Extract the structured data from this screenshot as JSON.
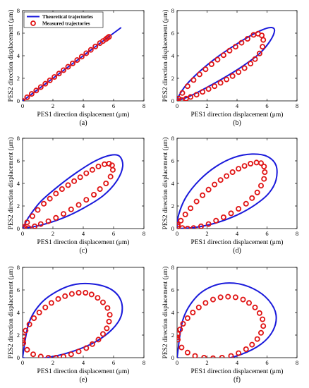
{
  "colors": {
    "theoretical": "#1a1adb",
    "measured": "#e01414"
  },
  "legend": {
    "position": "top-left",
    "panel": 0,
    "theoretical_label": "Theoretical trajectories",
    "measured_label": "Measured trajectories"
  },
  "chart_data": [
    {
      "type": "line",
      "panel_label": "(a)",
      "xlabel": "PES1 direction displacement (μm)",
      "ylabel": "PES2 direction displacement (μm)",
      "xlim": [
        0,
        8
      ],
      "ylim": [
        0,
        8
      ],
      "xticks": [
        0,
        2,
        4,
        6,
        8
      ],
      "yticks": [
        0,
        2,
        4,
        6,
        8
      ],
      "series": [
        {
          "name": "Theoretical trajectories",
          "style": "line",
          "x": [
            0,
            1,
            2,
            3,
            4,
            5,
            6,
            6.5
          ],
          "y": [
            0,
            1,
            2,
            3,
            4,
            5,
            6,
            6.5
          ]
        },
        {
          "name": "Measured trajectories",
          "style": "markers",
          "x": [
            0,
            0.3,
            0.6,
            0.9,
            1.2,
            1.5,
            1.8,
            2.1,
            2.4,
            2.7,
            3.0,
            3.3,
            3.6,
            3.9,
            4.2,
            4.5,
            4.8,
            5.1,
            5.3,
            5.5,
            5.6,
            5.7
          ],
          "y": [
            0,
            0.32,
            0.62,
            0.92,
            1.22,
            1.52,
            1.82,
            2.12,
            2.42,
            2.72,
            3.02,
            3.32,
            3.62,
            3.92,
            4.22,
            4.52,
            4.82,
            5.12,
            5.3,
            5.48,
            5.58,
            5.68
          ]
        }
      ]
    },
    {
      "type": "line",
      "panel_label": "(b)",
      "xlabel": "PES1 direction displacement (μm)",
      "ylabel": "PES2 direction displacement (μm)",
      "xlim": [
        0,
        8
      ],
      "ylim": [
        0,
        8
      ],
      "xticks": [
        0,
        2,
        4,
        6,
        8
      ],
      "yticks": [
        0,
        2,
        4,
        6,
        8
      ],
      "series": [
        {
          "name": "Theoretical trajectories",
          "style": "line",
          "x": [
            0,
            0.9,
            2.0,
            3.2,
            4.4,
            5.5,
            6.2,
            6.5,
            6.3,
            5.7,
            4.8,
            3.7,
            2.6,
            1.5,
            0.6,
            0.1,
            0
          ],
          "y": [
            0,
            0.45,
            1.2,
            2.1,
            3.1,
            4.2,
            5.3,
            6.2,
            6.5,
            6.3,
            5.7,
            4.8,
            3.8,
            2.6,
            1.4,
            0.4,
            0
          ]
        },
        {
          "name": "Measured trajectories",
          "style": "markers",
          "x": [
            0.05,
            0.3,
            0.6,
            0.9,
            1.3,
            1.7,
            2.1,
            2.5,
            2.9,
            3.3,
            3.7,
            4.1,
            4.5,
            4.9,
            5.2,
            5.5,
            5.7,
            5.75,
            5.65,
            5.4,
            5.1,
            4.7,
            4.3,
            3.9,
            3.5,
            3.1,
            2.7,
            2.3,
            1.9,
            1.5,
            1.1,
            0.7,
            0.35,
            0.1
          ],
          "y": [
            0,
            0.08,
            0.2,
            0.35,
            0.55,
            0.8,
            1.05,
            1.3,
            1.6,
            1.9,
            2.2,
            2.55,
            2.9,
            3.3,
            3.7,
            4.2,
            4.8,
            5.4,
            5.8,
            5.95,
            5.85,
            5.5,
            5.15,
            4.8,
            4.45,
            4.05,
            3.65,
            3.25,
            2.8,
            2.35,
            1.85,
            1.3,
            0.7,
            0.2
          ]
        }
      ]
    },
    {
      "type": "line",
      "panel_label": "(c)",
      "xlabel": "PES1 direction displacement (μm)",
      "ylabel": "PES2 direction displacement (μm)",
      "xlim": [
        0,
        8
      ],
      "ylim": [
        0,
        8
      ],
      "xticks": [
        0,
        2,
        4,
        6,
        8
      ],
      "yticks": [
        0,
        2,
        4,
        6,
        8
      ],
      "series": [
        {
          "name": "Theoretical trajectories",
          "style": "line",
          "x": [
            0,
            1.2,
            2.6,
            4.0,
            5.3,
            6.2,
            6.6,
            6.4,
            5.8,
            4.8,
            3.6,
            2.4,
            1.2,
            0.4,
            0
          ],
          "y": [
            0,
            0.3,
            0.9,
            1.8,
            2.9,
            4.2,
            5.5,
            6.4,
            6.5,
            6.0,
            5.0,
            3.8,
            2.4,
            1.0,
            0
          ]
        },
        {
          "name": "Measured trajectories",
          "style": "markers",
          "x": [
            0.05,
            0.4,
            0.8,
            1.2,
            1.7,
            2.2,
            2.7,
            3.2,
            3.7,
            4.2,
            4.7,
            5.1,
            5.5,
            5.8,
            5.95,
            5.9,
            5.7,
            5.4,
            5.0,
            4.6,
            4.2,
            3.8,
            3.4,
            3.0,
            2.6,
            2.2,
            1.8,
            1.4,
            1.0,
            0.65,
            0.3,
            0.1
          ],
          "y": [
            0,
            0.05,
            0.2,
            0.4,
            0.65,
            0.95,
            1.3,
            1.7,
            2.1,
            2.55,
            3.0,
            3.5,
            4.0,
            4.6,
            5.2,
            5.6,
            5.75,
            5.7,
            5.5,
            5.2,
            4.9,
            4.55,
            4.2,
            3.85,
            3.5,
            3.1,
            2.65,
            2.2,
            1.65,
            1.1,
            0.55,
            0.15
          ]
        }
      ]
    },
    {
      "type": "line",
      "panel_label": "(d)",
      "xlabel": "PES1 direction displacement (μm)",
      "ylabel": "PES2 direction displacement (μm)",
      "xlim": [
        0,
        8
      ],
      "ylim": [
        0,
        8
      ],
      "xticks": [
        0,
        2,
        4,
        6,
        8
      ],
      "yticks": [
        0,
        2,
        4,
        6,
        8
      ],
      "series": [
        {
          "name": "Theoretical trajectories",
          "style": "line",
          "x": [
            0,
            1.2,
            2.6,
            4.0,
            5.2,
            6.1,
            6.6,
            6.6,
            6.0,
            5.0,
            3.8,
            2.6,
            1.5,
            0.6,
            0.1,
            0
          ],
          "y": [
            0,
            0.1,
            0.5,
            1.2,
            2.1,
            3.1,
            4.3,
            5.6,
            6.4,
            6.6,
            6.3,
            5.5,
            4.3,
            2.8,
            1.2,
            0
          ]
        },
        {
          "name": "Measured trajectories",
          "style": "markers",
          "x": [
            0.05,
            0.35,
            0.7,
            1.1,
            1.6,
            2.1,
            2.6,
            3.1,
            3.6,
            4.1,
            4.6,
            5.0,
            5.35,
            5.6,
            5.8,
            5.85,
            5.8,
            5.6,
            5.3,
            4.9,
            4.5,
            4.1,
            3.7,
            3.3,
            2.9,
            2.5,
            2.1,
            1.7,
            1.3,
            0.9,
            0.55,
            0.25,
            0.05
          ],
          "y": [
            0.2,
            0.05,
            0,
            0.05,
            0.2,
            0.4,
            0.7,
            1.0,
            1.35,
            1.75,
            2.2,
            2.7,
            3.2,
            3.8,
            4.4,
            5.0,
            5.5,
            5.8,
            5.85,
            5.75,
            5.55,
            5.3,
            5.0,
            4.65,
            4.3,
            3.9,
            3.45,
            2.95,
            2.4,
            1.8,
            1.25,
            0.7,
            0.35
          ]
        }
      ]
    },
    {
      "type": "line",
      "panel_label": "(e)",
      "xlabel": "PES1 direction displacement (μm)",
      "ylabel": "PES2 direction displacement (μm)",
      "xlim": [
        0,
        8
      ],
      "ylim": [
        0,
        8
      ],
      "xticks": [
        0,
        2,
        4,
        6,
        8
      ],
      "yticks": [
        0,
        2,
        4,
        6,
        8
      ],
      "series": [
        {
          "name": "Theoretical trajectories",
          "style": "line",
          "x": [
            0,
            0.8,
            2.0,
            3.4,
            4.8,
            5.9,
            6.5,
            6.5,
            5.9,
            4.8,
            3.5,
            2.3,
            1.2,
            0.4,
            0
          ],
          "y": [
            0,
            -0.1,
            0.1,
            0.6,
            1.4,
            2.5,
            3.7,
            5.0,
            6.0,
            6.5,
            6.5,
            5.9,
            4.8,
            3.0,
            0
          ]
        },
        {
          "name": "Measured trajectories",
          "style": "markers",
          "x": [
            0.05,
            0.3,
            0.7,
            1.2,
            1.7,
            2.2,
            2.7,
            3.2,
            3.7,
            4.2,
            4.6,
            5.0,
            5.3,
            5.55,
            5.7,
            5.75,
            5.6,
            5.3,
            4.95,
            4.55,
            4.15,
            3.7,
            3.25,
            2.8,
            2.35,
            1.9,
            1.5,
            1.1,
            0.75,
            0.45,
            0.2,
            0.05,
            0
          ],
          "y": [
            1.3,
            0.7,
            0.3,
            0.1,
            0,
            0,
            0.1,
            0.3,
            0.55,
            0.85,
            1.2,
            1.6,
            2.1,
            2.6,
            3.2,
            3.8,
            4.4,
            4.9,
            5.3,
            5.6,
            5.75,
            5.75,
            5.65,
            5.45,
            5.2,
            4.85,
            4.45,
            4.0,
            3.5,
            2.95,
            2.4,
            1.9,
            1.5
          ]
        }
      ]
    },
    {
      "type": "line",
      "panel_label": "(f)",
      "xlabel": "PES1 direction displacement (μm)",
      "ylabel": "PES2 direction displacement (μm)",
      "xlim": [
        0,
        8
      ],
      "ylim": [
        0,
        8
      ],
      "xticks": [
        0,
        2,
        4,
        6,
        8
      ],
      "yticks": [
        0,
        2,
        4,
        6,
        8
      ],
      "series": [
        {
          "name": "Theoretical trajectories",
          "style": "line",
          "x": [
            0,
            1.2,
            2.8,
            4.3,
            5.6,
            6.4,
            6.6,
            6.1,
            5.1,
            3.8,
            2.5,
            1.3,
            0.4,
            0
          ],
          "y": [
            0,
            -0.2,
            -0.2,
            0.3,
            1.2,
            2.4,
            3.8,
            5.1,
            6.1,
            6.6,
            6.4,
            5.4,
            3.4,
            0
          ]
        },
        {
          "name": "Measured trajectories",
          "style": "markers",
          "x": [
            0.05,
            0.3,
            0.7,
            1.2,
            1.8,
            2.4,
            3.0,
            3.6,
            4.1,
            4.6,
            5.0,
            5.35,
            5.6,
            5.75,
            5.7,
            5.5,
            5.2,
            4.8,
            4.4,
            3.9,
            3.4,
            2.9,
            2.4,
            1.9,
            1.45,
            1.05,
            0.7,
            0.4,
            0.2,
            0.05,
            0
          ],
          "y": [
            1.6,
            0.9,
            0.45,
            0.15,
            0,
            -0.05,
            0,
            0.15,
            0.4,
            0.75,
            1.15,
            1.65,
            2.2,
            2.8,
            3.4,
            3.95,
            4.45,
            4.85,
            5.15,
            5.35,
            5.4,
            5.35,
            5.15,
            4.85,
            4.45,
            4.0,
            3.5,
            3.0,
            2.5,
            2.1,
            1.8
          ]
        }
      ]
    }
  ]
}
